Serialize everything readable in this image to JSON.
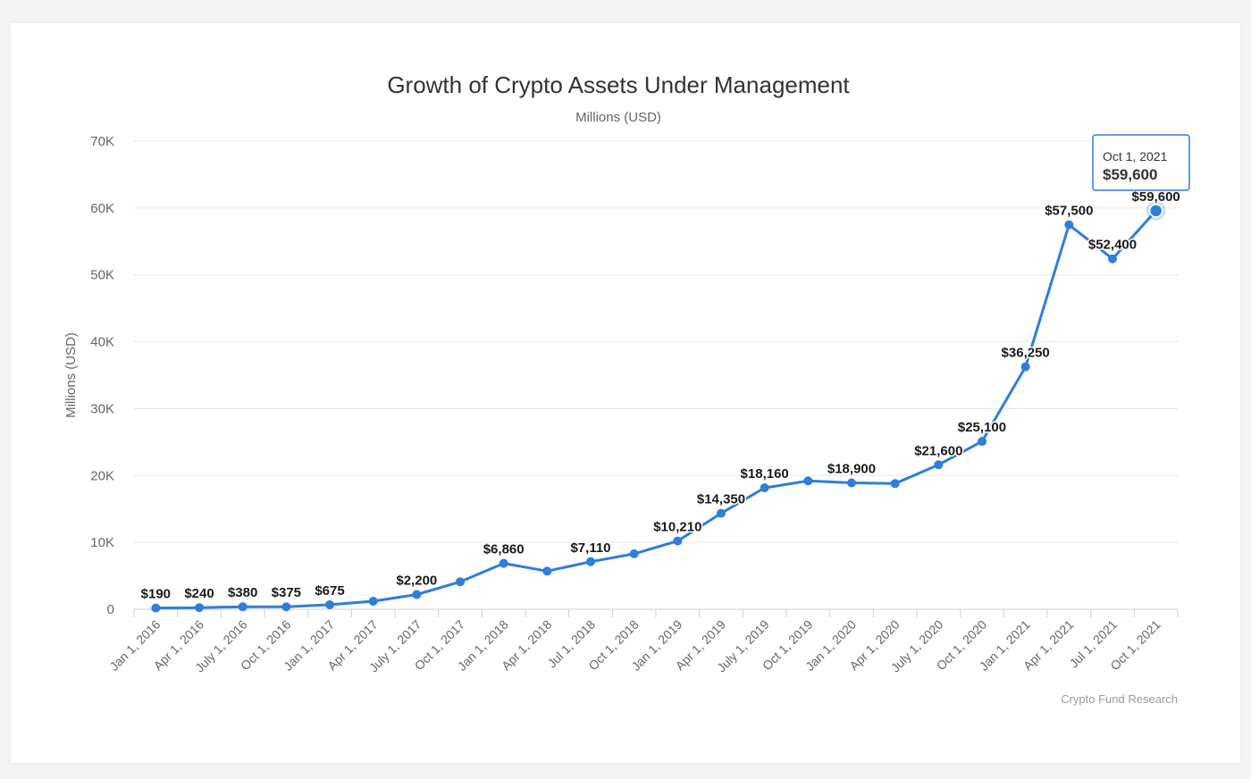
{
  "chart_data": {
    "type": "line",
    "title": "Growth of Crypto Assets Under Management",
    "subtitle": "Millions (USD)",
    "ylabel": "Millions (USD)",
    "xlabel": "",
    "ylim": [
      0,
      70000
    ],
    "yticks": [
      0,
      10000,
      20000,
      30000,
      40000,
      50000,
      60000,
      70000
    ],
    "ytick_labels": [
      "0",
      "10K",
      "20K",
      "30K",
      "40K",
      "50K",
      "60K",
      "70K"
    ],
    "grid": true,
    "color": "#2f7ed8",
    "categories": [
      "Jan 1, 2016",
      "Apr 1, 2016",
      "July 1, 2016",
      "Oct 1, 2016",
      "Jan 1, 2017",
      "Apr 1, 2017",
      "July 1, 2017",
      "Oct 1, 2017",
      "Jan 1, 2018",
      "Apr 1, 2018",
      "Jul 1, 2018",
      "Oct 1, 2018",
      "Jan 1, 2019",
      "Apr 1, 2019",
      "July 1, 2019",
      "Oct 1, 2019",
      "Jan 1, 2020",
      "Apr 1, 2020",
      "July 1, 2020",
      "Oct 1, 2020",
      "Jan 1, 2021",
      "Apr 1, 2021",
      "Jul 1, 2021",
      "Oct 1, 2021"
    ],
    "values": [
      190,
      240,
      380,
      375,
      675,
      1200,
      2200,
      4100,
      6860,
      5700,
      7110,
      8300,
      10210,
      14350,
      18160,
      19200,
      18900,
      18800,
      21600,
      25100,
      36250,
      57500,
      52400,
      59600
    ],
    "data_labels": [
      "$190",
      "$240",
      "$380",
      "$375",
      "$675",
      "",
      "$2,200",
      "",
      "$6,860",
      "",
      "$7,110",
      "",
      "$10,210",
      "$14,350",
      "$18,160",
      "",
      "$18,900",
      "",
      "$21,600",
      "$25,100",
      "$36,250",
      "$57,500",
      "$52,400",
      "$59,600"
    ],
    "credit": "Crypto Fund Research",
    "tooltip": {
      "date": "Oct 1, 2021",
      "value": "$59,600",
      "index": 23
    }
  }
}
